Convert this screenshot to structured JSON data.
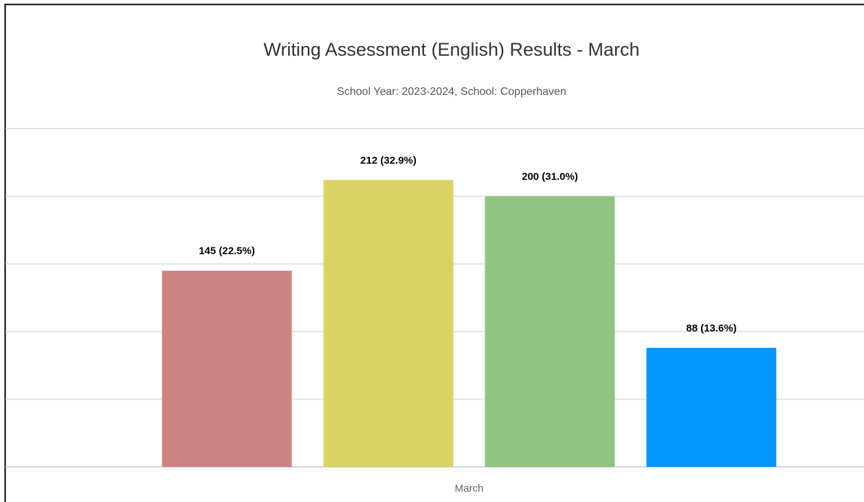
{
  "chart_data": {
    "type": "bar",
    "title": "Writing Assessment (English) Results - March",
    "subtitle": "School Year: 2023-2024, School: Copperhaven",
    "categories": [
      "March"
    ],
    "series": [
      {
        "color": "#cc8481",
        "values": [
          145
        ],
        "value_labels": [
          "145 (22.5%)"
        ]
      },
      {
        "color": "#dcd263",
        "values": [
          212
        ],
        "value_labels": [
          "212 (32.9%)"
        ]
      },
      {
        "color": "#91c381",
        "values": [
          200
        ],
        "value_labels": [
          "200 (31.0%)"
        ]
      },
      {
        "color": "#0298fe",
        "values": [
          88
        ],
        "value_labels": [
          "88 (13.6%)"
        ]
      }
    ],
    "ylim": [
      0,
      250
    ],
    "yticks": [
      0,
      50,
      100,
      150,
      200,
      250
    ],
    "grid": true
  }
}
